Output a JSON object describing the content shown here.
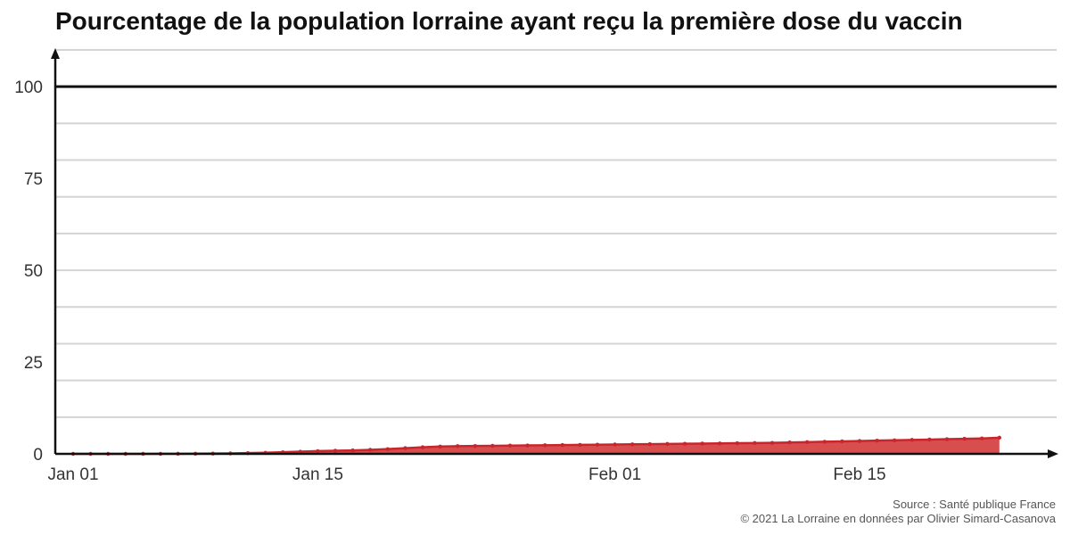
{
  "chart_data": {
    "type": "area",
    "title": "Pourcentage de la population lorraine ayant reçu la première dose du vaccin",
    "xlabel": "",
    "ylabel": "",
    "x_start": "2021-01-01",
    "x": [
      "Jan 01",
      "Jan 02",
      "Jan 03",
      "Jan 04",
      "Jan 05",
      "Jan 06",
      "Jan 07",
      "Jan 08",
      "Jan 09",
      "Jan 10",
      "Jan 11",
      "Jan 12",
      "Jan 13",
      "Jan 14",
      "Jan 15",
      "Jan 16",
      "Jan 17",
      "Jan 18",
      "Jan 19",
      "Jan 20",
      "Jan 21",
      "Jan 22",
      "Jan 23",
      "Jan 24",
      "Jan 25",
      "Jan 26",
      "Jan 27",
      "Jan 28",
      "Jan 29",
      "Jan 30",
      "Jan 31",
      "Feb 01",
      "Feb 02",
      "Feb 03",
      "Feb 04",
      "Feb 05",
      "Feb 06",
      "Feb 07",
      "Feb 08",
      "Feb 09",
      "Feb 10",
      "Feb 11",
      "Feb 12",
      "Feb 13",
      "Feb 14",
      "Feb 15",
      "Feb 16",
      "Feb 17",
      "Feb 18",
      "Feb 19",
      "Feb 20",
      "Feb 21",
      "Feb 22",
      "Feb 23"
    ],
    "x_ticks": [
      "Jan 01",
      "Jan 15",
      "Feb 01",
      "Feb 15"
    ],
    "ylim": [
      0,
      110
    ],
    "y_ticks": [
      0,
      25,
      50,
      75,
      100
    ],
    "grid": true,
    "series": [
      {
        "values": [
          0.0,
          0.0,
          0.0,
          0.0,
          0.01,
          0.02,
          0.03,
          0.05,
          0.08,
          0.12,
          0.2,
          0.3,
          0.45,
          0.6,
          0.75,
          0.85,
          0.95,
          1.1,
          1.3,
          1.55,
          1.8,
          2.0,
          2.1,
          2.15,
          2.2,
          2.25,
          2.3,
          2.35,
          2.4,
          2.45,
          2.5,
          2.55,
          2.6,
          2.65,
          2.7,
          2.75,
          2.8,
          2.85,
          2.9,
          2.95,
          3.0,
          3.1,
          3.2,
          3.3,
          3.4,
          3.5,
          3.6,
          3.7,
          3.8,
          3.9,
          4.0,
          4.1,
          4.2,
          4.4
        ],
        "color": "#c8262c"
      }
    ],
    "fill_color": "#d64545",
    "reference_line": 100,
    "source": "Source : Santé publique France",
    "credit": "© 2021 La Lorraine en données par Olivier Simard-Casanova"
  }
}
